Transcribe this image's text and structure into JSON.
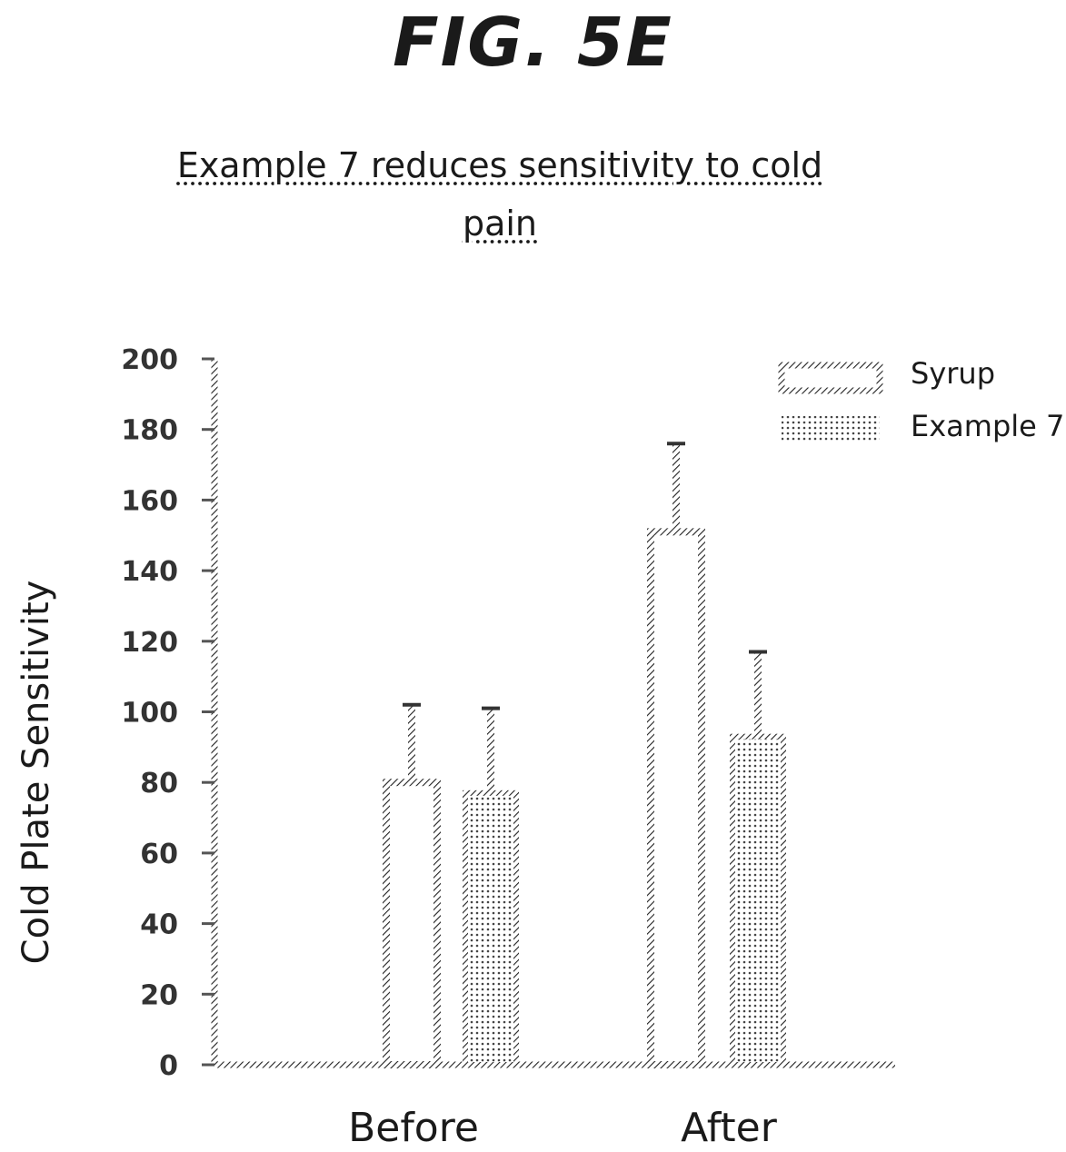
{
  "figure": {
    "label": "FIG. 5E"
  },
  "chart_data": {
    "type": "bar",
    "title": "Example 7 reduces sensitivity to cold pain",
    "title_lines": [
      "Example 7 reduces sensitivity to cold",
      "pain"
    ],
    "xlabel": "",
    "ylabel": "Cold Plate Sensitivity",
    "categories": [
      "Before",
      "After"
    ],
    "series": [
      {
        "name": "Syrup",
        "values": [
          80,
          151
        ],
        "error_upper": [
          102,
          176
        ],
        "pattern": "hollow-hatched-outline"
      },
      {
        "name": "Example 7",
        "values": [
          77,
          93
        ],
        "error_upper": [
          101,
          117
        ],
        "pattern": "dotted-fill"
      }
    ],
    "ylim": [
      0,
      200
    ],
    "yticks": [
      0,
      20,
      40,
      60,
      80,
      100,
      120,
      140,
      160,
      180,
      200
    ],
    "ytick_labels": [
      "0",
      "20",
      "40",
      "60",
      "80",
      "100",
      "120",
      "140",
      "160",
      "180",
      "200"
    ],
    "grid": false,
    "legend_position": "top-right"
  },
  "legend": {
    "items": [
      {
        "label": "Syrup"
      },
      {
        "label": "Example 7"
      }
    ]
  }
}
